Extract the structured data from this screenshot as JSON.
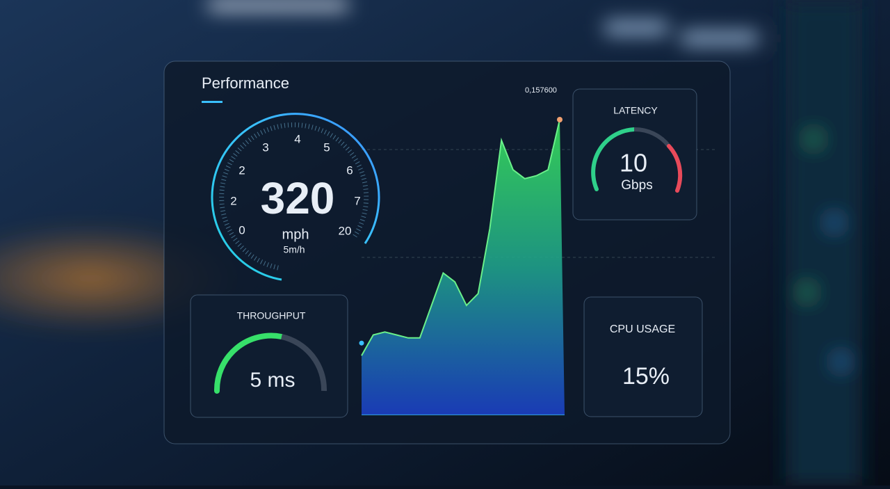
{
  "header": {
    "title": "Performance",
    "code": "0,157600"
  },
  "speedometer": {
    "scale": [
      "0",
      "2",
      "2",
      "3",
      "4",
      "5",
      "6",
      "7",
      "20"
    ],
    "value": "320",
    "unit": "mph",
    "subunit": "5m/h"
  },
  "latency": {
    "label": "LATENCY",
    "value": "10",
    "unit": "Gbps"
  },
  "throughput": {
    "label": "THROUGHPUT",
    "value": "5 ms"
  },
  "cpu": {
    "label": "CPU USAGE",
    "value": "15%"
  },
  "trend": {
    "values": [
      20,
      27,
      28,
      27,
      26,
      26,
      37,
      48,
      45,
      37,
      41,
      63,
      93,
      83,
      80,
      81,
      83,
      100
    ]
  }
}
